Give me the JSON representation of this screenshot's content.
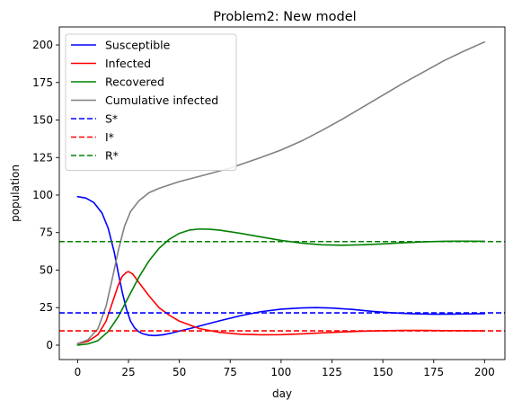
{
  "chart_data": {
    "type": "line",
    "title": "Problem2: New model",
    "xlabel": "day",
    "ylabel": "population",
    "xlim": [
      -9,
      210
    ],
    "ylim": [
      -9.6,
      212
    ],
    "xticks": [
      0,
      25,
      50,
      75,
      100,
      125,
      150,
      175,
      200
    ],
    "yticks": [
      0,
      25,
      50,
      75,
      100,
      125,
      150,
      175,
      200
    ],
    "grid": false,
    "legend_position": "upper-left",
    "series": [
      {
        "name": "Susceptible",
        "color": "#0000ff",
        "style": "solid",
        "x": [
          0,
          4,
          8,
          12,
          15,
          18,
          20,
          22,
          24,
          26,
          28,
          30,
          32,
          35,
          38,
          42,
          46,
          50,
          55,
          60,
          70,
          80,
          90,
          100,
          110,
          117,
          125,
          135,
          145,
          155,
          165,
          175,
          185,
          200
        ],
        "y": [
          99,
          98,
          95,
          88,
          78,
          62,
          48,
          35,
          24,
          16,
          11.5,
          9,
          7.6,
          6.6,
          6.4,
          6.9,
          8,
          9.4,
          11,
          12.8,
          16.3,
          19.6,
          22.3,
          24,
          24.8,
          25,
          24.7,
          23.8,
          22.5,
          21.5,
          20.9,
          20.6,
          20.7,
          21
        ]
      },
      {
        "name": "Infected",
        "color": "#ff0000",
        "style": "solid",
        "x": [
          0,
          5,
          10,
          14,
          17,
          20,
          22,
          24,
          25,
          27,
          30,
          35,
          40,
          45,
          50,
          60,
          70,
          80,
          90,
          100,
          110,
          120,
          130,
          140,
          150,
          160,
          170,
          180,
          190,
          200
        ],
        "y": [
          1,
          2.5,
          7,
          16,
          28,
          40,
          46,
          48.5,
          49,
          47.5,
          42,
          33,
          25,
          20,
          16,
          11,
          8.5,
          7.3,
          6.9,
          7,
          7.5,
          8.2,
          8.8,
          9.3,
          9.6,
          9.8,
          9.8,
          9.7,
          9.6,
          9.5
        ]
      },
      {
        "name": "Recovered",
        "color": "#008000",
        "style": "solid",
        "x": [
          0,
          5,
          10,
          15,
          20,
          25,
          30,
          35,
          40,
          45,
          50,
          55,
          60,
          65,
          70,
          80,
          90,
          100,
          110,
          120,
          130,
          140,
          150,
          160,
          170,
          180,
          190,
          200
        ],
        "y": [
          0,
          0.8,
          3,
          9,
          19,
          32,
          45,
          56,
          64.5,
          70.5,
          74.5,
          76.7,
          77.4,
          77.2,
          76.6,
          74.5,
          72.1,
          69.8,
          68,
          66.9,
          66.6,
          66.9,
          67.5,
          68.2,
          68.8,
          69.2,
          69.3,
          69.2
        ]
      },
      {
        "name": "Cumulative infected",
        "color": "#808080",
        "style": "solid",
        "x": [
          0,
          5,
          10,
          14,
          17,
          20,
          23,
          26,
          30,
          35,
          40,
          50,
          60,
          75,
          90,
          100,
          110,
          120,
          130,
          140,
          150,
          160,
          170,
          180,
          190,
          200
        ],
        "y": [
          1,
          3.5,
          11,
          26,
          44,
          63,
          79,
          89,
          96,
          101.5,
          104.5,
          109,
          112.5,
          118,
          125,
          130,
          136,
          143,
          150.5,
          158.5,
          166.5,
          174.5,
          182,
          189.5,
          196,
          202
        ]
      },
      {
        "name": "S*",
        "color": "#0000ff",
        "style": "dashed",
        "x": [
          -9,
          210
        ],
        "y": [
          21.5,
          21.5
        ]
      },
      {
        "name": "I*",
        "color": "#ff0000",
        "style": "dashed",
        "x": [
          -9,
          210
        ],
        "y": [
          9.5,
          9.5
        ]
      },
      {
        "name": "R*",
        "color": "#008000",
        "style": "dashed",
        "x": [
          -9,
          210
        ],
        "y": [
          69,
          69
        ]
      }
    ]
  }
}
